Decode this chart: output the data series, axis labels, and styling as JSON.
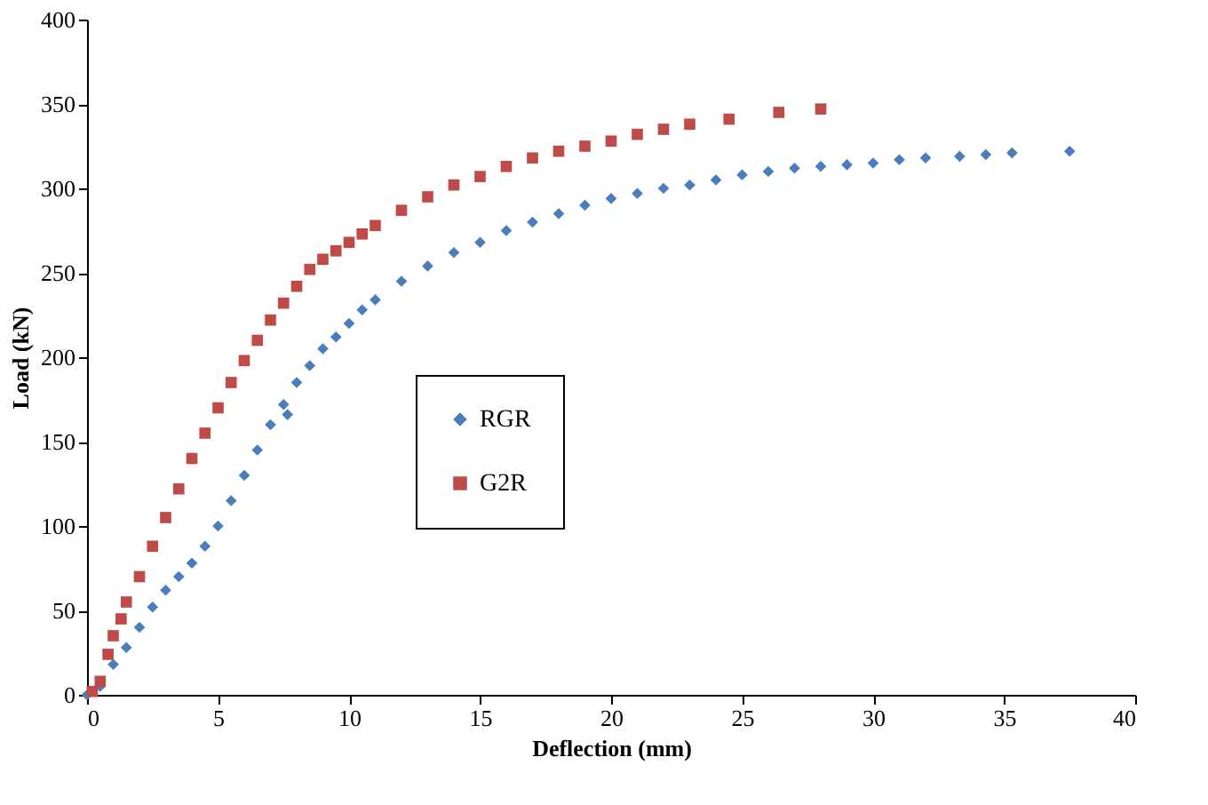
{
  "chart_data": {
    "type": "scatter",
    "xlabel": "Deflection (mm)",
    "ylabel": "Load (kN)",
    "xlim": [
      0,
      40
    ],
    "ylim": [
      0,
      400
    ],
    "xticks": [
      0,
      5,
      10,
      15,
      20,
      25,
      30,
      35,
      40
    ],
    "yticks": [
      0,
      50,
      100,
      150,
      200,
      250,
      300,
      350,
      400
    ],
    "grid": false,
    "legend": "left",
    "series": [
      {
        "name": "RGR",
        "color": "#4a7ebb",
        "marker": "diamond",
        "x": [
          0,
          0.5,
          1,
          1.5,
          2,
          2.5,
          3,
          3.5,
          4,
          4.5,
          5,
          5.5,
          6,
          6.5,
          7,
          7.5,
          7.65,
          8,
          8.5,
          9,
          9.5,
          10,
          10.5,
          11,
          12,
          13,
          14,
          15,
          16,
          17,
          18,
          19,
          20,
          21,
          22,
          23,
          24,
          25,
          26,
          27,
          28,
          29,
          30,
          31,
          32,
          33.3,
          34.3,
          35.3,
          37.5
        ],
        "values": [
          0,
          5,
          18,
          28,
          40,
          52,
          62,
          70,
          78,
          88,
          100,
          115,
          130,
          145,
          160,
          172,
          166,
          185,
          195,
          205,
          212,
          220,
          228,
          234,
          245,
          254,
          262,
          268,
          275,
          280,
          285,
          290,
          294,
          297,
          300,
          302,
          305,
          308,
          310,
          312,
          313,
          314,
          315,
          317,
          318,
          319,
          320,
          321,
          322
        ]
      },
      {
        "name": "G2R",
        "color": "#be4b48",
        "marker": "square",
        "x": [
          0.2,
          0.5,
          0.8,
          1,
          1.3,
          1.5,
          2,
          2.5,
          3,
          3.5,
          4,
          4.5,
          5,
          5.5,
          6,
          6.5,
          7,
          7.5,
          8,
          8.5,
          9,
          9.5,
          10,
          10.5,
          11,
          12,
          13,
          14,
          15,
          16,
          17,
          18,
          19,
          20,
          21,
          22,
          23,
          24.5,
          26.4,
          28
        ],
        "values": [
          2,
          8,
          24,
          35,
          45,
          55,
          70,
          88,
          105,
          122,
          140,
          155,
          170,
          185,
          198,
          210,
          222,
          232,
          242,
          252,
          258,
          263,
          268,
          273,
          278,
          287,
          295,
          302,
          307,
          313,
          318,
          322,
          325,
          328,
          332,
          335,
          338,
          341,
          345,
          347
        ]
      }
    ]
  }
}
